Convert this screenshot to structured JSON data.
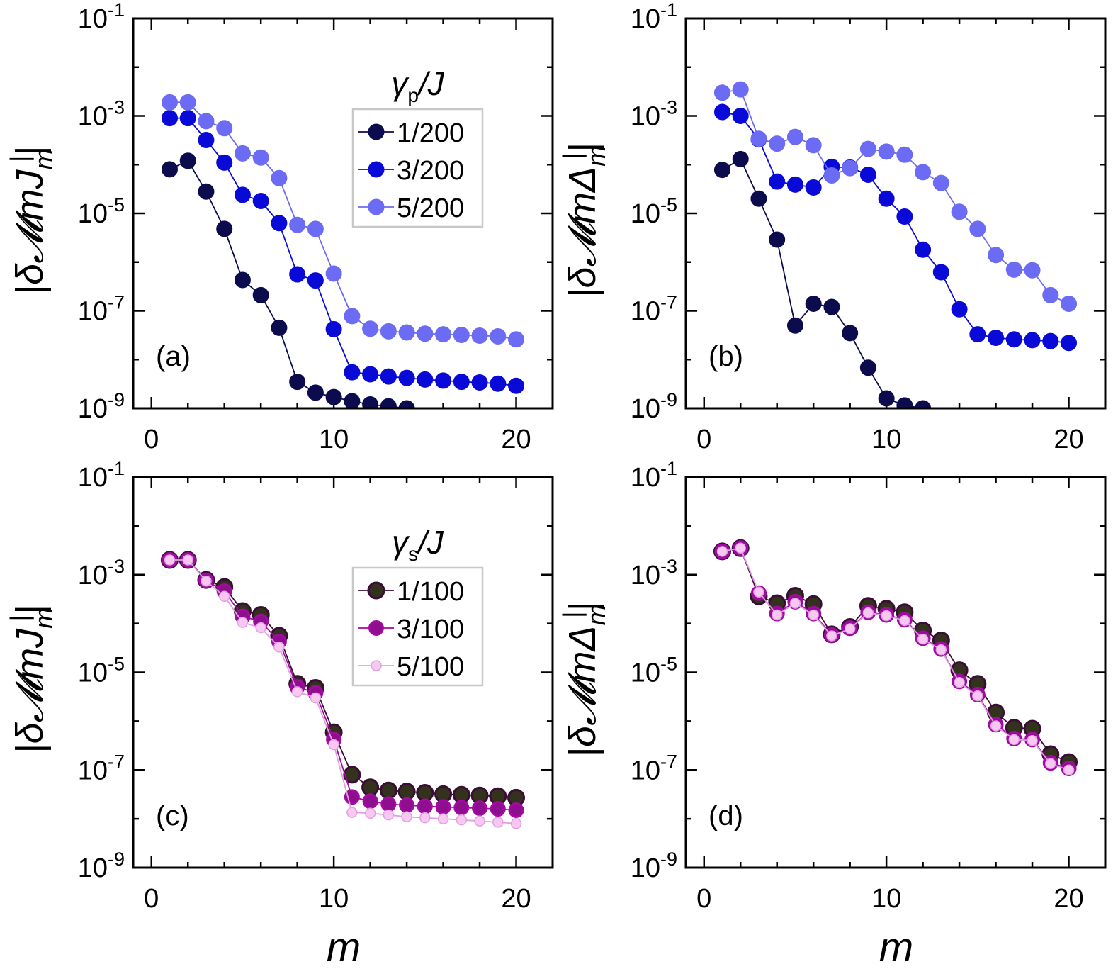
{
  "figure": {
    "x_axis_label": "m",
    "y_label_J": "|δ𝓜",
    "y_label_D": "|δ𝓜"
  },
  "colors": {
    "p1": "#0b0b4e",
    "p3": "#0a0ad8",
    "p5": "#6b6bf3",
    "s1": "#33321c",
    "s3": "#8e0e8e",
    "s5": "#f8c8f3",
    "s1_edge": "#3a0d37",
    "s3_edge": "#a10aa3",
    "s5_edge": "#e0a0e0"
  },
  "chart_data": [
    {
      "type": "scatter",
      "panel_label": "(a)",
      "y_label": "|δ𝓜mJ|",
      "xlim": [
        -1,
        22
      ],
      "ylim_log10": [
        -9,
        -1
      ],
      "yscale": "log",
      "xticks": [
        "0",
        "10",
        "20"
      ],
      "yticks": [
        {
          "base": "10",
          "exp": "-1"
        },
        {
          "base": "10",
          "exp": "-3"
        },
        {
          "base": "10",
          "exp": "-5"
        },
        {
          "base": "10",
          "exp": "-7"
        },
        {
          "base": "10",
          "exp": "-9"
        }
      ],
      "legend_title": "γp/J",
      "series": [
        {
          "name": "1/200",
          "style": "p1",
          "x": [
            1,
            2,
            3,
            4,
            5,
            6,
            7,
            8,
            9,
            10,
            11,
            12,
            13,
            14
          ],
          "y": [
            8e-05,
            0.00012,
            2.8e-05,
            4.8e-06,
            4.3e-07,
            2.1e-07,
            4.5e-08,
            3.5e-09,
            2.1e-09,
            1.7e-09,
            1.4e-09,
            1.2e-09,
            1.1e-09,
            1e-09
          ]
        },
        {
          "name": "3/200",
          "style": "p3",
          "x": [
            1,
            2,
            3,
            4,
            5,
            6,
            7,
            8,
            9,
            10,
            11,
            12,
            13,
            14,
            15,
            16,
            17,
            18,
            19,
            20
          ],
          "y": [
            0.0009,
            0.0009,
            0.00032,
            0.00011,
            2.4e-05,
            1.8e-05,
            6.3e-06,
            5.6e-07,
            4.2e-07,
            4.2e-08,
            5.5e-09,
            5e-09,
            4.5e-09,
            4.2e-09,
            3.9e-09,
            3.7e-09,
            3.5e-09,
            3.4e-09,
            3.2e-09,
            2.9e-09
          ]
        },
        {
          "name": "5/200",
          "style": "p5",
          "x": [
            1,
            2,
            3,
            4,
            5,
            6,
            7,
            8,
            9,
            10,
            11,
            12,
            13,
            14,
            15,
            16,
            17,
            18,
            19,
            20
          ],
          "y": [
            0.0019,
            0.0019,
            0.00078,
            0.00056,
            0.00017,
            0.00014,
            5.3e-05,
            5.8e-06,
            4.8e-06,
            5.8e-07,
            7.8e-08,
            4.3e-08,
            3.8e-08,
            3.6e-08,
            3.4e-08,
            3.3e-08,
            3.2e-08,
            3.1e-08,
            3e-08,
            2.6e-08
          ]
        }
      ]
    },
    {
      "type": "scatter",
      "panel_label": "(b)",
      "y_label": "|δ𝓜mΔ|",
      "xlim": [
        -1,
        22
      ],
      "ylim_log10": [
        -9,
        -1
      ],
      "yscale": "log",
      "xticks": [
        "0",
        "10",
        "20"
      ],
      "yticks": [
        {
          "base": "10",
          "exp": "-1"
        },
        {
          "base": "10",
          "exp": "-3"
        },
        {
          "base": "10",
          "exp": "-5"
        },
        {
          "base": "10",
          "exp": "-7"
        },
        {
          "base": "10",
          "exp": "-9"
        }
      ],
      "series": [
        {
          "name": "1/200",
          "style": "p1",
          "x": [
            1,
            2,
            3,
            4,
            5,
            6,
            7,
            8,
            9,
            10,
            11,
            12
          ],
          "y": [
            7.8e-05,
            0.00013,
            2e-05,
            2.9e-06,
            5e-08,
            1.4e-07,
            1.2e-07,
            3.5e-08,
            6.8e-09,
            1.6e-09,
            1.15e-09,
            1e-09
          ]
        },
        {
          "name": "3/200",
          "style": "p3",
          "x": [
            1,
            2,
            3,
            4,
            5,
            6,
            7,
            8,
            9,
            10,
            11,
            12,
            13,
            14,
            15,
            16,
            17,
            18,
            19,
            20
          ],
          "y": [
            0.0012,
            0.001,
            0.00033,
            4.5e-05,
            3.9e-05,
            3.4e-05,
            9e-05,
            8.7e-05,
            6.2e-05,
            2e-05,
            8.6e-06,
            1.8e-06,
            6.2e-07,
            1.08e-07,
            3.3e-08,
            2.8e-08,
            2.6e-08,
            2.5e-08,
            2.4e-08,
            2.2e-08
          ]
        },
        {
          "name": "5/200",
          "style": "p5",
          "x": [
            1,
            2,
            3,
            4,
            5,
            6,
            7,
            8,
            9,
            10,
            11,
            12,
            13,
            14,
            15,
            16,
            17,
            18,
            19,
            20
          ],
          "y": [
            0.003,
            0.0035,
            0.00034,
            0.00027,
            0.00037,
            0.00025,
            6e-05,
            8.5e-05,
            0.00021,
            0.000185,
            0.00016,
            7e-05,
            4.2e-05,
            1.08e-05,
            4.8e-06,
            1.4e-06,
            7e-07,
            6.8e-07,
            2.1e-07,
            1.4e-07
          ]
        }
      ]
    },
    {
      "type": "scatter",
      "panel_label": "(c)",
      "y_label": "|δ𝓜mJ|",
      "xlim": [
        -1,
        22
      ],
      "ylim_log10": [
        -9,
        -1
      ],
      "yscale": "log",
      "xticks": [
        "0",
        "10",
        "20"
      ],
      "yticks": [
        {
          "base": "10",
          "exp": "-1"
        },
        {
          "base": "10",
          "exp": "-3"
        },
        {
          "base": "10",
          "exp": "-5"
        },
        {
          "base": "10",
          "exp": "-7"
        },
        {
          "base": "10",
          "exp": "-9"
        }
      ],
      "legend_title": "γs/J",
      "series": [
        {
          "name": "1/100",
          "style": "s1",
          "x": [
            1,
            2,
            3,
            4,
            5,
            6,
            7,
            8,
            9,
            10,
            11,
            12,
            13,
            14,
            15,
            16,
            17,
            18,
            19,
            20
          ],
          "y": [
            0.002,
            0.002,
            0.00078,
            0.00056,
            0.00018,
            0.00015,
            5.6e-05,
            5.8e-06,
            4.8e-06,
            5.9e-07,
            8e-08,
            4.4e-08,
            3.8e-08,
            3.6e-08,
            3.4e-08,
            3.2e-08,
            3.1e-08,
            3e-08,
            2.9e-08,
            2.7e-08
          ]
        },
        {
          "name": "3/100",
          "style": "s3",
          "x": [
            1,
            2,
            3,
            4,
            5,
            6,
            7,
            8,
            9,
            10,
            11,
            12,
            13,
            14,
            15,
            16,
            17,
            18,
            19,
            20
          ],
          "y": [
            0.002,
            0.002,
            0.00076,
            0.00046,
            0.00014,
            0.00011,
            4.3e-05,
            5e-06,
            3.8e-06,
            4.2e-07,
            2.8e-08,
            2.3e-08,
            2e-08,
            1.9e-08,
            1.8e-08,
            1.75e-08,
            1.7e-08,
            1.65e-08,
            1.6e-08,
            1.5e-08
          ]
        },
        {
          "name": "5/100",
          "style": "s5",
          "x": [
            1,
            2,
            3,
            4,
            5,
            6,
            7,
            8,
            9,
            10,
            11,
            12,
            13,
            14,
            15,
            16,
            17,
            18,
            19,
            20
          ],
          "y": [
            0.002,
            0.002,
            0.00074,
            0.00036,
            0.000105,
            8.2e-05,
            3.3e-05,
            4e-06,
            3e-06,
            3.3e-07,
            1.35e-08,
            1.3e-08,
            1.2e-08,
            1.1e-08,
            1.05e-08,
            1e-08,
            9.5e-09,
            9e-09,
            8.5e-09,
            8e-09
          ]
        }
      ]
    },
    {
      "type": "scatter",
      "panel_label": "(d)",
      "y_label": "|δ𝓜mΔ|",
      "xlim": [
        -1,
        22
      ],
      "ylim_log10": [
        -9,
        -1
      ],
      "yscale": "log",
      "xticks": [
        "0",
        "10",
        "20"
      ],
      "yticks": [
        {
          "base": "10",
          "exp": "-1"
        },
        {
          "base": "10",
          "exp": "-3"
        },
        {
          "base": "10",
          "exp": "-5"
        },
        {
          "base": "10",
          "exp": "-7"
        },
        {
          "base": "10",
          "exp": "-9"
        }
      ],
      "series": [
        {
          "name": "1/100",
          "style": "s1",
          "x": [
            1,
            2,
            3,
            4,
            5,
            6,
            7,
            8,
            9,
            10,
            11,
            12,
            13,
            14,
            15,
            16,
            17,
            18,
            19,
            20
          ],
          "y": [
            0.003,
            0.0035,
            0.00036,
            0.00026,
            0.00037,
            0.00025,
            6e-05,
            8.5e-05,
            0.00023,
            0.0002,
            0.00017,
            7.2e-05,
            4.5e-05,
            1.1e-05,
            5.8e-06,
            1.5e-06,
            7.3e-07,
            7e-07,
            2.1e-07,
            1.45e-07
          ]
        },
        {
          "name": "3/100",
          "style": "s3",
          "x": [
            1,
            2,
            3,
            4,
            5,
            6,
            7,
            8,
            9,
            10,
            11,
            12,
            13,
            14,
            15,
            16,
            17,
            18,
            19,
            20
          ],
          "y": [
            0.003,
            0.0035,
            0.00042,
            0.00016,
            0.00028,
            0.00016,
            5.8e-05,
            8e-05,
            0.00017,
            0.00015,
            0.00012,
            5e-05,
            3e-05,
            6.5e-06,
            3.5e-06,
            8.5e-07,
            4.4e-07,
            4.2e-07,
            1.4e-07,
            1.08e-07
          ]
        },
        {
          "name": "5/100",
          "style": "s5",
          "x": [
            1,
            2,
            3,
            4,
            5,
            6,
            7,
            8,
            9,
            10,
            11,
            12,
            13,
            14,
            15,
            16,
            17,
            18,
            19,
            20
          ],
          "y": [
            0.003,
            0.0035,
            0.00044,
            0.00015,
            0.00026,
            0.00015,
            5.6e-05,
            7.8e-05,
            0.000165,
            0.000145,
            0.000115,
            4.8e-05,
            2.9e-05,
            6.2e-06,
            3.3e-06,
            8e-07,
            4.2e-07,
            4e-07,
            1.35e-07,
            1e-07
          ]
        }
      ]
    }
  ]
}
